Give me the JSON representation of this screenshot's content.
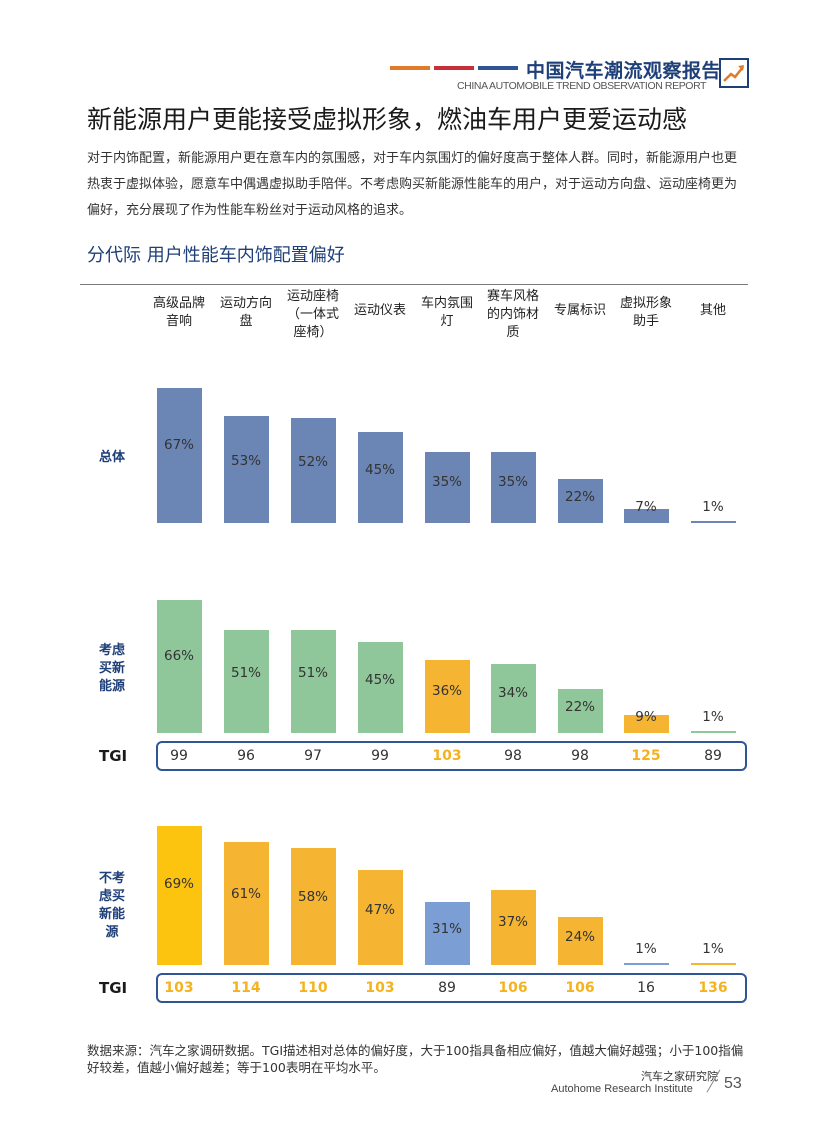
{
  "header": {
    "title": "中国汽车潮流观察报告",
    "subtitle": "CHINA AUTOMOBILE TREND OBSERVATION REPORT",
    "bar_colors": [
      "#e07b2a",
      "#c7303a",
      "#2f5596"
    ]
  },
  "page_title": "新能源用户更能接受虚拟形象，燃油车用户更爱运动感",
  "description": "对于内饰配置，新能源用户更在意车内的氛围感，对于车内氛围灯的偏好度高于整体人群。同时，新能源用户也更热衷于虚拟体验，愿意车中偶遇虚拟助手陪伴。不考虑购买新能源性能车的用户，对于运动方向盘、运动座椅更为偏好，充分展现了作为性能车粉丝对于运动风格的追求。",
  "section_title": "分代际  用户性能车内饰配置偏好",
  "colors": {
    "overall": "#6b86b4",
    "green": "#8fc79a",
    "orange": "#f5b432",
    "yellow": "#fcc40f",
    "blue": "#7b9fd4",
    "tgi_highlight": "#f5b21f",
    "header_blue": "#1e3f78"
  },
  "chart_data": {
    "type": "bar",
    "categories": [
      "高级品牌音响",
      "运动方向盘",
      "运动座椅（一体式座椅）",
      "运动仪表",
      "车内氛围灯",
      "赛车风格的内饰材质",
      "专属标识",
      "虚拟形象助手",
      "其他"
    ],
    "category_lines": [
      [
        "高级品牌",
        "音响"
      ],
      [
        "运动方向",
        "盘"
      ],
      [
        "运动座椅",
        "（一体式",
        "座椅）"
      ],
      [
        "运动仪表"
      ],
      [
        "车内氛围",
        "灯"
      ],
      [
        "赛车风格",
        "的内饰材",
        "质"
      ],
      [
        "专属标识"
      ],
      [
        "虚拟形象",
        "助手"
      ],
      [
        "其他"
      ]
    ],
    "units": "%",
    "series": [
      {
        "name": "总体",
        "values": [
          67,
          53,
          52,
          45,
          35,
          35,
          22,
          7,
          1
        ],
        "labels": [
          "67%",
          "53%",
          "52%",
          "45%",
          "35%",
          "35%",
          "22%",
          "7%",
          "1%"
        ]
      },
      {
        "name": "考虑买新能源",
        "values": [
          66,
          51,
          51,
          45,
          36,
          34,
          22,
          9,
          1
        ],
        "labels": [
          "66%",
          "51%",
          "51%",
          "45%",
          "36%",
          "34%",
          "22%",
          "9%",
          "1%"
        ],
        "tgi": [
          99,
          96,
          97,
          99,
          103,
          98,
          98,
          125,
          89
        ]
      },
      {
        "name": "不考虑买新能源",
        "values": [
          69,
          61,
          58,
          47,
          31,
          37,
          24,
          1,
          1
        ],
        "labels": [
          "69%",
          "61%",
          "58%",
          "47%",
          "31%",
          "37%",
          "24%",
          "1%",
          "1%"
        ],
        "tgi": [
          103,
          114,
          110,
          103,
          89,
          106,
          106,
          16,
          136
        ]
      }
    ],
    "tgi_label": "TGI"
  },
  "group_labels": [
    [
      "总体"
    ],
    [
      "考虑",
      "买新",
      "能源"
    ],
    [
      "不考",
      "虑买",
      "新能",
      "源"
    ]
  ],
  "footnote": "数据来源：汽车之家调研数据。TGI描述相对总体的偏好度，大于100指具备相应偏好，值越大偏好越强；小于100指偏好较差，值越小偏好越差；等于100表明在平均水平。",
  "footer": {
    "org_cn": "汽车之家研究院",
    "org_en": "Autohome Research Institute",
    "page": "53"
  }
}
